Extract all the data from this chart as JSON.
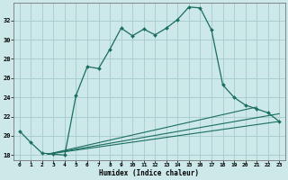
{
  "xlabel": "Humidex (Indice chaleur)",
  "bg_color": "#cce8e8",
  "grid_color": "#aacece",
  "line_color": "#1a6e5e",
  "xlim": [
    -0.5,
    23.5
  ],
  "ylim": [
    17.5,
    33.8
  ],
  "xticks": [
    0,
    1,
    2,
    3,
    4,
    5,
    6,
    7,
    8,
    9,
    10,
    11,
    12,
    13,
    14,
    15,
    16,
    17,
    18,
    19,
    20,
    21,
    22,
    23
  ],
  "yticks": [
    18,
    20,
    22,
    24,
    26,
    28,
    30,
    32
  ],
  "main_x": [
    0,
    1,
    2,
    3,
    4,
    5,
    6,
    7,
    8,
    9,
    10,
    11,
    12,
    13,
    14,
    15,
    16,
    17,
    18,
    19,
    20,
    21,
    22,
    23
  ],
  "main_y": [
    20.5,
    19.3,
    18.2,
    18.1,
    18.0,
    24.2,
    27.2,
    27.0,
    29.0,
    31.2,
    30.4,
    31.1,
    30.5,
    31.2,
    32.1,
    33.4,
    33.3,
    31.0,
    25.3,
    24.0,
    23.2,
    22.8,
    22.4,
    21.5
  ],
  "line2_x": [
    2.5,
    23
  ],
  "line2_y": [
    18.1,
    21.5
  ],
  "line3_x": [
    2.5,
    21
  ],
  "line3_y": [
    18.1,
    23.0
  ],
  "line4_x": [
    2.5,
    23
  ],
  "line4_y": [
    18.1,
    22.3
  ]
}
